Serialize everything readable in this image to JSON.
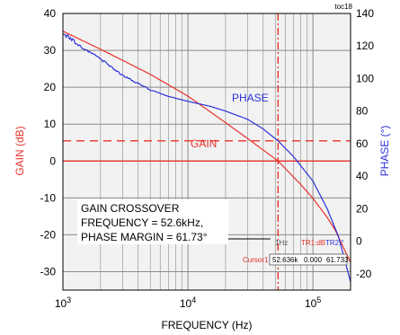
{
  "tag": "toc18",
  "xlabel": "FREQUENCY (Hz)",
  "ylabel_left": "GAIN (dB)",
  "ylabel_right": "PHASE (°)",
  "annotation": {
    "line1": "GAIN CROSSOVER",
    "line2": "FREQUENCY = 52.6kHz,",
    "line3": "PHASE MARGIN = 61.73°"
  },
  "cursor": {
    "col1": "1Hz",
    "col2": "TR1:dB",
    "col3": "TR2:°",
    "label": "Cursor1",
    "freq": "52.636k",
    "gain": "0.000",
    "phase": "61.733"
  },
  "colors": {
    "gain": "#e8322a",
    "phase": "#2c32d8",
    "grid": "#8a8a8a",
    "plot_bg": "#f2f2f2"
  },
  "chart_data": {
    "type": "line",
    "xlabel": "FREQUENCY (Hz)",
    "x_scale": "log",
    "xlim": [
      1000,
      200000
    ],
    "x_ticks": [
      {
        "value": 1000,
        "base": "10",
        "exp": "3"
      },
      {
        "value": 10000,
        "base": "10",
        "exp": "4"
      },
      {
        "value": 100000,
        "base": "10",
        "exp": "5"
      }
    ],
    "ylabel_left": "GAIN (dB)",
    "ylim_left": [
      -35,
      40
    ],
    "yticks_left": [
      "40",
      "30",
      "20",
      "10",
      "0",
      "-10",
      "-20",
      "-30"
    ],
    "ylabel_right": "PHASE (°)",
    "ylim_right": [
      -30,
      140
    ],
    "yticks_right": [
      "140",
      "120",
      "100",
      "80",
      "60",
      "40",
      "20",
      "0",
      "-20"
    ],
    "grid": true,
    "reference_lines": [
      {
        "axis": "left",
        "value": 0,
        "style": "solid",
        "color": "#e8322a"
      },
      {
        "axis": "right",
        "value": 61.73,
        "style": "dashed",
        "color": "#e8322a"
      },
      {
        "axis": "x",
        "value": 52600,
        "style": "dashed",
        "color": "#e8322a"
      }
    ],
    "series": [
      {
        "name": "GAIN",
        "axis": "left",
        "color": "#e8322a",
        "x": [
          1000,
          2000,
          5000,
          10000,
          20000,
          30000,
          52600,
          80000,
          100000,
          130000,
          150000,
          200000
        ],
        "y": [
          35.2,
          30.3,
          23.5,
          17.6,
          10.4,
          6.1,
          0,
          -6.4,
          -10.1,
          -15.3,
          -18.6,
          -27.5
        ]
      },
      {
        "name": "PHASE",
        "axis": "right",
        "color": "#2c32d8",
        "x": [
          1000,
          1500,
          2000,
          3000,
          5000,
          7000,
          10000,
          15000,
          20000,
          30000,
          40000,
          52600,
          70000,
          100000,
          130000,
          160000,
          200000
        ],
        "y": [
          128,
          118,
          112,
          102,
          93,
          89,
          86,
          83,
          80,
          75,
          69,
          61.7,
          52,
          37,
          20,
          3,
          -25
        ]
      }
    ]
  }
}
